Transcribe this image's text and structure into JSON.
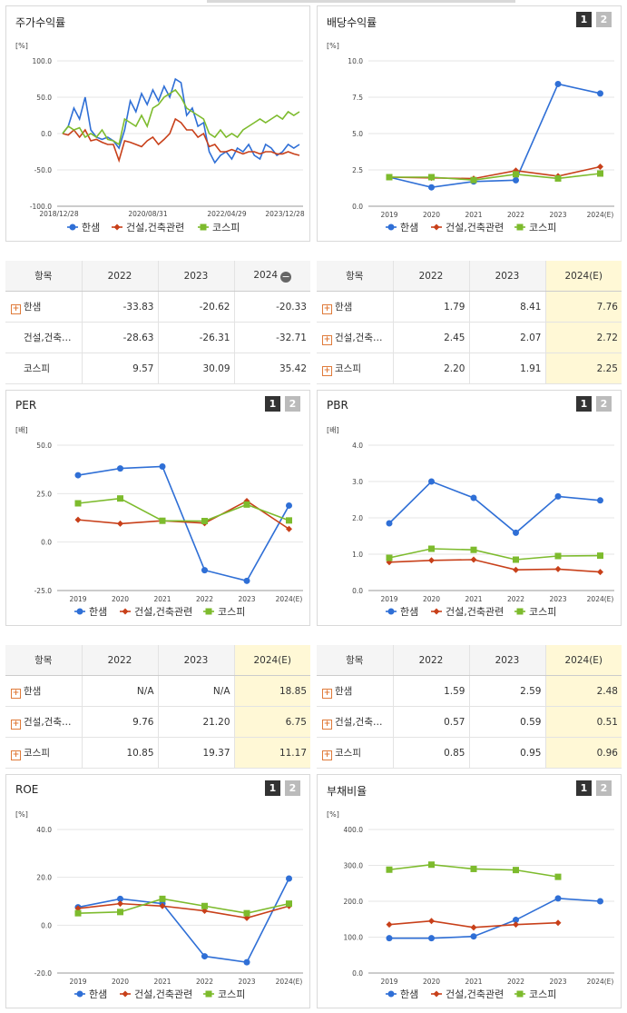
{
  "legend": [
    "한샘",
    "건설,건축관련",
    "코스피"
  ],
  "colors": {
    "s0": "#2f6fd6",
    "s1": "#c8401a",
    "s2": "#7dbb2d"
  },
  "buttons": {
    "b1": "1",
    "b2": "2"
  },
  "panels": {
    "stock": {
      "title": "주가수익률"
    },
    "div": {
      "title": "배당수익률"
    },
    "per": {
      "title": "PER"
    },
    "pbr": {
      "title": "PBR"
    },
    "roe": {
      "title": "ROE"
    },
    "debt": {
      "title": "부채비율"
    }
  },
  "chart_data": [
    {
      "id": "stock",
      "type": "line",
      "unit": "[%]",
      "ylim": [
        -100,
        100
      ],
      "yticks": [
        "100.0",
        "50.0",
        "0.0",
        "-50.0",
        "-100.0"
      ],
      "xlabels": [
        "2018/12/28",
        "2020/08/31",
        "2022/04/29",
        "2023/12/28"
      ],
      "series": [
        {
          "name": "한샘",
          "values": [
            0,
            10,
            35,
            20,
            50,
            5,
            -5,
            -8,
            -5,
            -10,
            -20,
            5,
            45,
            30,
            55,
            40,
            60,
            45,
            65,
            50,
            75,
            70,
            25,
            35,
            10,
            15,
            -25,
            -40,
            -30,
            -25,
            -35,
            -20,
            -25,
            -15,
            -30,
            -35,
            -15,
            -20,
            -30,
            -25,
            -15,
            -20,
            -15
          ]
        },
        {
          "name": "건설,건축관련",
          "values": [
            0,
            -2,
            5,
            -5,
            5,
            -10,
            -8,
            -12,
            -15,
            -15,
            -37,
            -10,
            -12,
            -15,
            -18,
            -10,
            -5,
            -15,
            -8,
            0,
            20,
            15,
            5,
            5,
            -5,
            0,
            -18,
            -15,
            -25,
            -25,
            -22,
            -25,
            -28,
            -25,
            -25,
            -28,
            -25,
            -25,
            -28,
            -28,
            -25,
            -28,
            -30
          ]
        },
        {
          "name": "코스피",
          "values": [
            0,
            10,
            5,
            8,
            -5,
            0,
            -5,
            5,
            -8,
            -10,
            -15,
            20,
            15,
            10,
            25,
            10,
            35,
            40,
            50,
            55,
            60,
            50,
            35,
            30,
            25,
            20,
            0,
            -5,
            5,
            -5,
            0,
            -5,
            5,
            10,
            15,
            20,
            15,
            20,
            25,
            20,
            30,
            25,
            30
          ]
        }
      ]
    },
    {
      "id": "div",
      "type": "line",
      "unit": "[%]",
      "ylim": [
        0,
        10
      ],
      "yticks": [
        "10.0",
        "7.5",
        "5.0",
        "2.5",
        "0.0"
      ],
      "xlabels": [
        "2019",
        "2020",
        "2021",
        "2022",
        "2023",
        "2024(E)"
      ],
      "series": [
        {
          "name": "한샘",
          "values": [
            2.0,
            1.3,
            1.7,
            1.79,
            8.41,
            7.76
          ]
        },
        {
          "name": "건설,건축관련",
          "values": [
            2.0,
            1.95,
            1.9,
            2.45,
            2.07,
            2.72
          ]
        },
        {
          "name": "코스피",
          "values": [
            2.0,
            2.0,
            1.8,
            2.2,
            1.91,
            2.25
          ]
        }
      ]
    },
    {
      "id": "per",
      "type": "line",
      "unit": "[배]",
      "ylim": [
        -25,
        50
      ],
      "yticks": [
        "50.0",
        "25.0",
        "0.0",
        "-25.0"
      ],
      "xlabels": [
        "2019",
        "2020",
        "2021",
        "2022",
        "2023",
        "2024(E)"
      ],
      "series": [
        {
          "name": "한샘",
          "values": [
            34.5,
            38,
            39,
            -14.5,
            -20,
            18.85
          ]
        },
        {
          "name": "건설,건축관련",
          "values": [
            11.5,
            9.5,
            11,
            9.76,
            21.2,
            6.75
          ]
        },
        {
          "name": "코스피",
          "values": [
            20,
            22.5,
            11,
            10.85,
            19.37,
            11.17
          ]
        }
      ]
    },
    {
      "id": "pbr",
      "type": "line",
      "unit": "[배]",
      "ylim": [
        0,
        4
      ],
      "yticks": [
        "4.0",
        "3.0",
        "2.0",
        "1.0",
        "0.0"
      ],
      "xlabels": [
        "2019",
        "2020",
        "2021",
        "2022",
        "2023",
        "2024(E)"
      ],
      "series": [
        {
          "name": "한샘",
          "values": [
            1.85,
            3.0,
            2.55,
            1.59,
            2.59,
            2.48
          ]
        },
        {
          "name": "건설,건축관련",
          "values": [
            0.78,
            0.83,
            0.85,
            0.57,
            0.59,
            0.51
          ]
        },
        {
          "name": "코스피",
          "values": [
            0.9,
            1.15,
            1.12,
            0.85,
            0.95,
            0.96
          ]
        }
      ]
    },
    {
      "id": "roe",
      "type": "line",
      "unit": "[%]",
      "ylim": [
        -20,
        40
      ],
      "yticks": [
        "40.0",
        "20.0",
        "0.0",
        "-20.0"
      ],
      "xlabels": [
        "2019",
        "2020",
        "2021",
        "2022",
        "2023",
        "2024(E)"
      ],
      "series": [
        {
          "name": "한샘",
          "values": [
            7.5,
            11,
            9,
            -13,
            -15.5,
            19.5
          ]
        },
        {
          "name": "건설,건축관련",
          "values": [
            7,
            9,
            8,
            6,
            3,
            8
          ]
        },
        {
          "name": "코스피",
          "values": [
            5,
            5.5,
            11,
            8,
            5,
            9
          ]
        }
      ]
    },
    {
      "id": "debt",
      "type": "line",
      "unit": "[%]",
      "ylim": [
        0,
        400
      ],
      "yticks": [
        "400.0",
        "300.0",
        "200.0",
        "100.0",
        "0.0"
      ],
      "xlabels": [
        "2019",
        "2020",
        "2021",
        "2022",
        "2023",
        "2024(E)"
      ],
      "series": [
        {
          "name": "한샘",
          "values": [
            97,
            97,
            102,
            148,
            208,
            200
          ]
        },
        {
          "name": "건설,건축관련",
          "values": [
            135,
            145,
            127,
            135,
            140,
            null
          ]
        },
        {
          "name": "코스피",
          "values": [
            288,
            302,
            290,
            287,
            268,
            null
          ]
        }
      ]
    }
  ],
  "tables": {
    "stock": {
      "headers": [
        "항목",
        "2022",
        "2023",
        "2024"
      ],
      "rows": [
        {
          "name": "한샘",
          "values": [
            "-33.83",
            "-20.62",
            "-20.33"
          ]
        },
        {
          "name": "건설,건축…",
          "values": [
            "-28.63",
            "-26.31",
            "-32.71"
          ]
        },
        {
          "name": "코스피",
          "values": [
            "9.57",
            "30.09",
            "35.42"
          ]
        }
      ]
    },
    "div": {
      "headers": [
        "항목",
        "2022",
        "2023",
        "2024(E)"
      ],
      "rows": [
        {
          "name": "한샘",
          "values": [
            "1.79",
            "8.41",
            "7.76"
          ]
        },
        {
          "name": "건설,건축…",
          "values": [
            "2.45",
            "2.07",
            "2.72"
          ]
        },
        {
          "name": "코스피",
          "values": [
            "2.20",
            "1.91",
            "2.25"
          ]
        }
      ]
    },
    "per": {
      "headers": [
        "항목",
        "2022",
        "2023",
        "2024(E)"
      ],
      "rows": [
        {
          "name": "한샘",
          "values": [
            "N/A",
            "N/A",
            "18.85"
          ]
        },
        {
          "name": "건설,건축…",
          "values": [
            "9.76",
            "21.20",
            "6.75"
          ]
        },
        {
          "name": "코스피",
          "values": [
            "10.85",
            "19.37",
            "11.17"
          ]
        }
      ]
    },
    "pbr": {
      "headers": [
        "항목",
        "2022",
        "2023",
        "2024(E)"
      ],
      "rows": [
        {
          "name": "한샘",
          "values": [
            "1.59",
            "2.59",
            "2.48"
          ]
        },
        {
          "name": "건설,건축…",
          "values": [
            "0.57",
            "0.59",
            "0.51"
          ]
        },
        {
          "name": "코스피",
          "values": [
            "0.85",
            "0.95",
            "0.96"
          ]
        }
      ]
    }
  }
}
